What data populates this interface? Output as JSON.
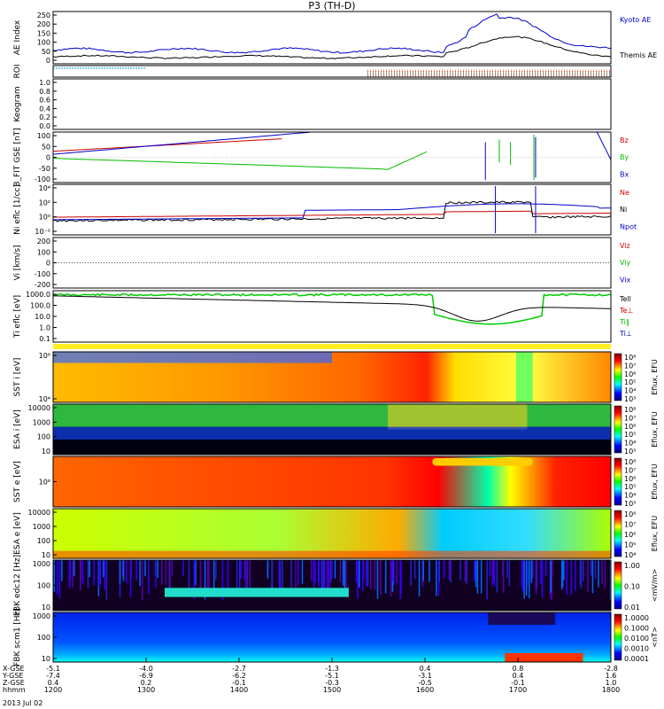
{
  "chart_data": {
    "type": "line",
    "title": "P3 (TH-D)",
    "date": "2013 Jul 02",
    "x_axis": {
      "rows": [
        {
          "label": "X-GSE",
          "values": [
            "-5.1",
            "-4.0",
            "-2.7",
            "-1.3",
            "0.4",
            "0.8",
            "-2.8"
          ]
        },
        {
          "label": "Y-GSE",
          "values": [
            "-7.4",
            "-6.9",
            "-6.2",
            "-5.1",
            "-3.1",
            "0.4",
            "1.6"
          ]
        },
        {
          "label": "Z-GSE",
          "values": [
            "0.4",
            "0.2",
            "-0.1",
            "-0.3",
            "-0.5",
            "-0.1",
            "1.0"
          ]
        },
        {
          "label": "hhmm",
          "values": [
            "1200",
            "1300",
            "1400",
            "1500",
            "1600",
            "1700",
            "1800"
          ]
        }
      ]
    },
    "panels": [
      {
        "id": "ae",
        "ylabel": "AE Index",
        "yticks": [
          "250",
          "200",
          "150",
          "100",
          "50",
          "0"
        ],
        "legend": [
          {
            "text": "Kyoto AE",
            "color": "#0000cc"
          },
          {
            "text": "Themis AE",
            "color": "#000000"
          }
        ]
      },
      {
        "id": "roi",
        "ylabel": "ROI",
        "yticks": [],
        "legend": []
      },
      {
        "id": "keo",
        "ylabel": "Keogram",
        "yticks": [
          "1.0",
          "0.8",
          "0.6",
          "0.4",
          "0.2",
          "0.0"
        ],
        "legend": []
      },
      {
        "id": "bfit",
        "ylabel": "B_FIT GSE [nT]",
        "yticks": [
          "100",
          "50",
          "0",
          "-50",
          "-100"
        ],
        "legend": [
          {
            "text": "Bz",
            "color": "#cc0000"
          },
          {
            "text": "By",
            "color": "#00bb00"
          },
          {
            "text": "Bx",
            "color": "#0000cc"
          }
        ]
      },
      {
        "id": "ni",
        "ylabel": "Ni eflc [1/cc]",
        "yticks": [
          "10⁴",
          "10²",
          "10⁰",
          "10⁻²"
        ],
        "legend": [
          {
            "text": "Ne",
            "color": "#cc0000"
          },
          {
            "text": "Ni",
            "color": "#000000"
          },
          {
            "text": "Npot",
            "color": "#0000cc"
          }
        ]
      },
      {
        "id": "vi",
        "ylabel": "Vi [km/s]",
        "yticks": [
          "200",
          "100",
          "0",
          "-100",
          "-200"
        ],
        "legend": [
          {
            "text": "Viz",
            "color": "#cc0000"
          },
          {
            "text": "Viy",
            "color": "#00bb00"
          },
          {
            "text": "Vix",
            "color": "#0000cc"
          }
        ]
      },
      {
        "id": "ti",
        "ylabel": "Ti eflc [eV]",
        "yticks": [
          "1000.0",
          "100.0",
          "10.0",
          "1.0",
          "0.1"
        ],
        "legend": [
          {
            "text": "Tell",
            "color": "#000000"
          },
          {
            "text": "Te⊥",
            "color": "#cc0000"
          },
          {
            "text": "Ti∥",
            "color": "#00bb00"
          },
          {
            "text": "Ti⊥",
            "color": "#0000cc"
          }
        ]
      },
      {
        "id": "sst_i",
        "ylabel": "SST i [eV]",
        "yticks": [
          "10⁶",
          "10⁴"
        ],
        "colorbar": "Eflux, EFU",
        "cticks": [
          "10⁸",
          "10⁷",
          "10⁶",
          "10⁵",
          "10⁴",
          "10³"
        ]
      },
      {
        "id": "esa_i",
        "ylabel": "ESA i [eV]",
        "yticks": [
          "10000",
          "1000",
          "100",
          "10"
        ],
        "colorbar": "Eflux, EFU",
        "cticks": [
          "10⁸",
          "10⁷",
          "10⁶",
          "10⁵",
          "10⁴",
          "10³"
        ]
      },
      {
        "id": "sst_e",
        "ylabel": "SST e [eV]",
        "yticks": [
          "10⁶"
        ],
        "colorbar": "Eflux, EFU",
        "cticks": [
          "10⁸",
          "10⁷",
          "10⁶",
          "10⁵",
          "10⁴",
          "10³"
        ]
      },
      {
        "id": "esa_e",
        "ylabel": "ESA e [eV]",
        "yticks": [
          "10000",
          "1000",
          "100",
          "10"
        ],
        "colorbar": "Eflux, EFU",
        "cticks": [
          "10⁸",
          "10⁷",
          "10⁶",
          "10⁵",
          "10⁴"
        ]
      },
      {
        "id": "fbk_e",
        "ylabel": "FBK edc12 [Hz]",
        "yticks": [
          "1000",
          "100",
          "10"
        ],
        "colorbar": "<mV/m>",
        "cticks": [
          "1.00",
          "0.10",
          "0.01"
        ]
      },
      {
        "id": "fbk_b",
        "ylabel": "FBK scm1 [Hz]",
        "yticks": [
          "1000",
          "100",
          "10"
        ],
        "colorbar": "<nT>",
        "cticks": [
          "1.0000",
          "0.1000",
          "0.0100",
          "0.0010",
          "0.0001"
        ]
      }
    ]
  }
}
